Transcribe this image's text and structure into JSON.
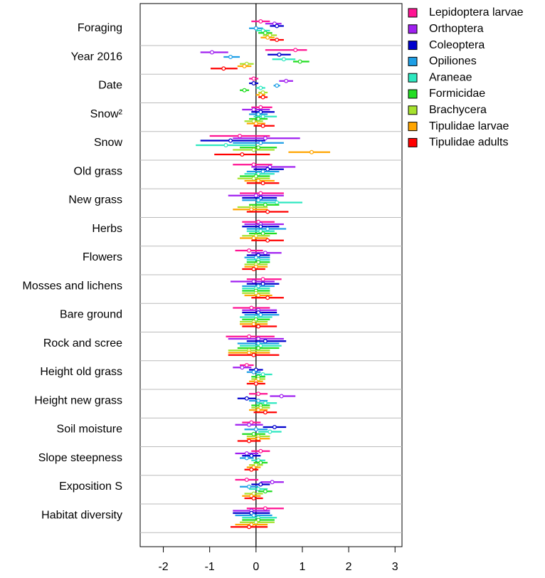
{
  "chart_data": {
    "type": "forest",
    "categories": [
      "Foraging",
      "Year 2016",
      "Date",
      "Snow²",
      "Snow",
      "Old grass",
      "New grass",
      "Herbs",
      "Flowers",
      "Mosses and lichens",
      "Bare ground",
      "Rock and scree",
      "Height old grass",
      "Height new grass",
      "Soil moisture",
      "Slope steepness",
      "Exposition S",
      "Habitat diversity"
    ],
    "xlim": [
      -2.5,
      3.15
    ],
    "xticks": [
      -2,
      -1,
      0,
      1,
      2,
      3
    ],
    "legend": "top-right",
    "series": [
      {
        "name": "Lepidoptera larvae",
        "color": "#ff1493",
        "values": [
          0.1,
          0.85,
          -0.05,
          0.1,
          -0.35,
          -0.05,
          0.1,
          0.05,
          -0.15,
          0.15,
          -0.1,
          -0.15,
          -0.2,
          0.05,
          -0.1,
          0.1,
          -0.2,
          0.2
        ],
        "lower": [
          -0.1,
          0.2,
          -0.15,
          -0.1,
          -1.0,
          -0.5,
          -0.35,
          -0.3,
          -0.45,
          -0.2,
          -0.5,
          -0.65,
          -0.35,
          -0.15,
          -0.3,
          -0.1,
          -0.45,
          -0.2
        ],
        "upper": [
          0.3,
          1.1,
          0.05,
          0.35,
          0.3,
          0.35,
          0.6,
          0.4,
          0.15,
          0.55,
          0.3,
          0.4,
          -0.05,
          0.25,
          0.1,
          0.3,
          0.05,
          0.6
        ]
      },
      {
        "name": "Orthoptera",
        "color": "#a020f0",
        "values": [
          0.4,
          -0.95,
          0.65,
          -0.05,
          0.2,
          0.3,
          0.0,
          0.1,
          0.2,
          -0.05,
          0.05,
          0.05,
          -0.3,
          0.55,
          -0.15,
          -0.2,
          0.35,
          -0.1
        ],
        "lower": [
          0.2,
          -1.2,
          0.5,
          -0.3,
          -0.5,
          -0.1,
          -0.6,
          -0.25,
          -0.1,
          -0.55,
          -0.3,
          -0.6,
          -0.5,
          0.3,
          -0.45,
          -0.45,
          0.1,
          -0.5
        ],
        "upper": [
          0.55,
          -0.6,
          0.8,
          0.3,
          0.95,
          0.85,
          0.6,
          0.6,
          0.55,
          0.4,
          0.45,
          0.6,
          -0.1,
          0.85,
          0.15,
          0.05,
          0.6,
          0.3
        ]
      },
      {
        "name": "Coleoptera",
        "color": "#0000cd",
        "values": [
          0.45,
          0.5,
          -0.05,
          0.1,
          -0.55,
          0.25,
          0.1,
          0.1,
          0.05,
          0.15,
          0.05,
          0.2,
          0.0,
          -0.2,
          0.4,
          -0.1,
          0.1,
          -0.1
        ],
        "lower": [
          0.3,
          0.25,
          -0.15,
          -0.1,
          -1.2,
          -0.05,
          -0.3,
          -0.3,
          -0.2,
          -0.2,
          -0.3,
          -0.2,
          -0.15,
          -0.4,
          0.15,
          -0.3,
          -0.1,
          -0.5
        ],
        "upper": [
          0.6,
          0.75,
          0.05,
          0.4,
          0.2,
          0.6,
          0.45,
          0.5,
          0.3,
          0.5,
          0.45,
          0.65,
          0.15,
          0.0,
          0.65,
          0.1,
          0.3,
          0.3
        ]
      },
      {
        "name": "Opiliones",
        "color": "#1e9fe6",
        "values": [
          0.0,
          -0.55,
          0.45,
          0.05,
          0.1,
          0.15,
          0.05,
          0.25,
          0.0,
          0.05,
          0.1,
          0.05,
          -0.05,
          0.05,
          0.0,
          -0.2,
          -0.15,
          -0.05
        ],
        "lower": [
          -0.15,
          -0.7,
          0.38,
          -0.15,
          -0.5,
          -0.2,
          -0.3,
          -0.2,
          -0.25,
          -0.3,
          -0.25,
          -0.4,
          -0.2,
          -0.15,
          -0.25,
          -0.35,
          -0.35,
          -0.45
        ],
        "upper": [
          0.15,
          -0.35,
          0.52,
          0.25,
          0.6,
          0.5,
          0.45,
          0.65,
          0.3,
          0.4,
          0.5,
          0.5,
          0.1,
          0.25,
          0.25,
          -0.05,
          0.05,
          0.35
        ]
      },
      {
        "name": "Araneae",
        "color": "#2ee8c0",
        "values": [
          0.15,
          0.6,
          0.1,
          0.15,
          -0.65,
          0.05,
          0.45,
          0.1,
          0.05,
          0.0,
          0.0,
          0.1,
          0.15,
          0.2,
          0.3,
          0.05,
          0.05,
          0.05
        ],
        "lower": [
          0.0,
          0.35,
          0.0,
          -0.05,
          -1.3,
          -0.25,
          0.0,
          -0.2,
          -0.2,
          -0.3,
          -0.35,
          -0.35,
          0.0,
          0.0,
          0.05,
          -0.1,
          -0.15,
          -0.3
        ],
        "upper": [
          0.3,
          0.85,
          0.2,
          0.45,
          0.0,
          0.4,
          1.0,
          0.4,
          0.3,
          0.3,
          0.35,
          0.55,
          0.35,
          0.45,
          0.55,
          0.2,
          0.25,
          0.45
        ]
      },
      {
        "name": "Formicidae",
        "color": "#22dd22",
        "values": [
          0.2,
          0.95,
          -0.25,
          0.05,
          0.05,
          0.0,
          0.2,
          0.15,
          0.05,
          0.0,
          0.0,
          0.05,
          0.05,
          0.1,
          -0.05,
          0.1,
          0.2,
          0.05
        ],
        "lower": [
          0.05,
          0.8,
          -0.35,
          -0.15,
          -0.35,
          -0.35,
          -0.15,
          -0.15,
          -0.2,
          -0.3,
          -0.3,
          -0.4,
          -0.1,
          -0.1,
          -0.3,
          -0.05,
          0.05,
          -0.3
        ],
        "upper": [
          0.35,
          1.15,
          -0.15,
          0.25,
          0.45,
          0.3,
          0.5,
          0.45,
          0.3,
          0.3,
          0.3,
          0.5,
          0.2,
          0.3,
          0.2,
          0.25,
          0.35,
          0.4
        ]
      },
      {
        "name": "Brachycera",
        "color": "#a6e22e",
        "values": [
          0.3,
          -0.2,
          0.15,
          -0.05,
          -0.05,
          -0.05,
          -0.1,
          0.0,
          0.0,
          0.0,
          -0.05,
          -0.15,
          0.05,
          0.1,
          0.05,
          0.0,
          -0.05,
          0.0
        ],
        "lower": [
          0.15,
          -0.35,
          0.05,
          -0.25,
          -0.5,
          -0.4,
          -0.4,
          -0.3,
          -0.25,
          -0.3,
          -0.35,
          -0.6,
          -0.1,
          -0.1,
          -0.2,
          -0.15,
          -0.25,
          -0.35
        ],
        "upper": [
          0.45,
          -0.05,
          0.25,
          0.15,
          0.4,
          0.3,
          0.25,
          0.3,
          0.25,
          0.3,
          0.25,
          0.3,
          0.2,
          0.3,
          0.3,
          0.15,
          0.15,
          0.4
        ]
      },
      {
        "name": "Tipulidae larvae",
        "color": "#ffa500",
        "values": [
          0.25,
          -0.25,
          0.1,
          0.0,
          1.2,
          0.05,
          -0.1,
          -0.05,
          0.0,
          0.05,
          -0.05,
          -0.15,
          0.0,
          0.05,
          0.05,
          -0.05,
          -0.1,
          -0.1
        ],
        "lower": [
          0.1,
          -0.4,
          0.0,
          -0.2,
          0.7,
          -0.25,
          -0.5,
          -0.35,
          -0.25,
          -0.25,
          -0.35,
          -0.6,
          -0.15,
          -0.15,
          -0.2,
          -0.2,
          -0.3,
          -0.45
        ],
        "upper": [
          0.4,
          -0.1,
          0.2,
          0.2,
          1.6,
          0.4,
          0.25,
          0.25,
          0.25,
          0.35,
          0.25,
          0.3,
          0.15,
          0.25,
          0.3,
          0.1,
          0.1,
          0.25
        ]
      },
      {
        "name": "Tipulidae adults",
        "color": "#ff0000",
        "values": [
          0.45,
          -0.7,
          0.15,
          0.15,
          -0.3,
          0.15,
          0.25,
          0.25,
          -0.05,
          0.25,
          0.05,
          -0.05,
          0.0,
          0.2,
          -0.15,
          -0.1,
          -0.05,
          -0.15
        ],
        "lower": [
          0.3,
          -0.98,
          0.05,
          -0.05,
          -0.9,
          -0.2,
          -0.2,
          -0.1,
          -0.3,
          -0.1,
          -0.3,
          -0.6,
          -0.2,
          -0.05,
          -0.4,
          -0.25,
          -0.25,
          -0.55
        ],
        "upper": [
          0.6,
          -0.4,
          0.25,
          0.4,
          0.3,
          0.5,
          0.7,
          0.6,
          0.2,
          0.6,
          0.45,
          0.5,
          0.2,
          0.45,
          0.1,
          0.05,
          0.15,
          0.25
        ]
      }
    ]
  }
}
